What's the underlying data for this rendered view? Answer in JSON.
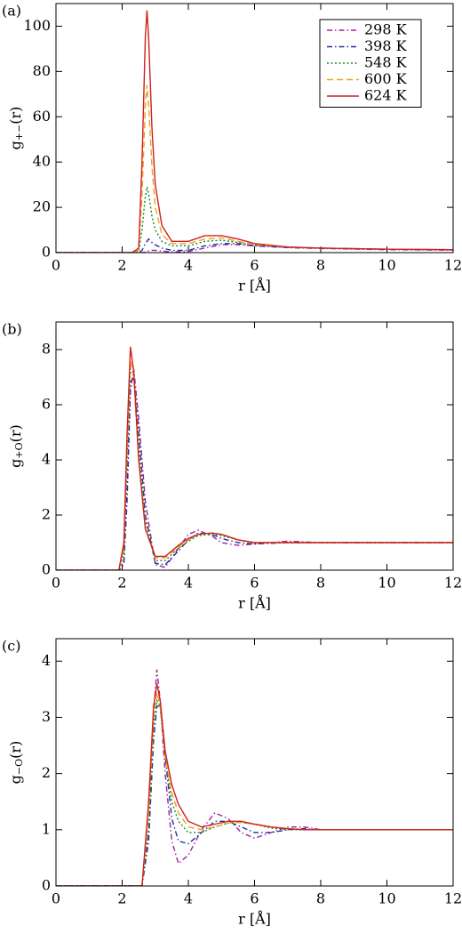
{
  "chart_data": [
    {
      "type": "line",
      "panel_label": "(a)",
      "xlabel": "r [Å]",
      "ylabel": "g",
      "ylabel_sub": "+−",
      "ylabel_tail": "(r)",
      "xlim": [
        0,
        12
      ],
      "xticks": [
        0,
        2,
        4,
        6,
        8,
        10,
        12
      ],
      "ylim": [
        0,
        110
      ],
      "yticks": [
        0,
        20,
        40,
        60,
        80,
        100
      ],
      "legend": "upper right",
      "x": [
        0,
        2.3,
        2.5,
        2.6,
        2.7,
        2.75,
        2.8,
        2.9,
        3.0,
        3.2,
        3.5,
        4.0,
        4.5,
        5.0,
        5.5,
        6.0,
        7.0,
        8.0,
        10,
        12
      ],
      "series": [
        {
          "name": "298 K",
          "color": "#a020a0",
          "dash": "dashdot",
          "values": [
            0,
            0,
            0,
            0,
            0.3,
            0.5,
            0.8,
            1,
            1,
            0.7,
            0.3,
            0.5,
            2,
            3.5,
            3.5,
            3,
            2.2,
            1.8,
            1.3,
            1.1
          ]
        },
        {
          "name": "398 K",
          "color": "#2030a0",
          "dash": "dashdot",
          "values": [
            0,
            0,
            0,
            1,
            4,
            5,
            6,
            4.5,
            3.5,
            2,
            1,
            1,
            3,
            4,
            4,
            3,
            2.3,
            2,
            1.5,
            1.2
          ]
        },
        {
          "name": "548 K",
          "color": "#1a8a1a",
          "dash": "dot",
          "values": [
            0,
            0,
            0.5,
            10,
            25,
            29,
            26,
            16,
            10,
            5,
            3,
            3,
            5,
            5.5,
            4.5,
            3.5,
            2.5,
            2,
            1.5,
            1.3
          ]
        },
        {
          "name": "600 K",
          "color": "#f0a020",
          "dash": "dash",
          "values": [
            0,
            0,
            1,
            25,
            65,
            74,
            65,
            38,
            20,
            8,
            4,
            4,
            6,
            6.5,
            5,
            3.5,
            2.5,
            2,
            1.5,
            1.3
          ]
        },
        {
          "name": "624 K",
          "color": "#d02020",
          "dash": "solid",
          "values": [
            0,
            0,
            2,
            40,
            95,
            107,
            95,
            55,
            30,
            12,
            5,
            5,
            7.5,
            7.5,
            6,
            4,
            2.5,
            2,
            1.5,
            1.3
          ]
        }
      ]
    },
    {
      "type": "line",
      "panel_label": "(b)",
      "xlabel": "r [Å]",
      "ylabel": "g",
      "ylabel_sub": "+O",
      "ylabel_tail": "(r)",
      "xlim": [
        0,
        12
      ],
      "xticks": [
        0,
        2,
        4,
        6,
        8,
        10,
        12
      ],
      "ylim": [
        0,
        9
      ],
      "yticks": [
        0,
        2,
        4,
        6,
        8
      ],
      "x": [
        0,
        1.9,
        2.05,
        2.15,
        2.25,
        2.35,
        2.5,
        2.7,
        3.0,
        3.3,
        3.7,
        4.0,
        4.3,
        4.7,
        5.0,
        5.5,
        6.0,
        7.0,
        8.0,
        10,
        12
      ],
      "series": [
        {
          "color": "#a020a0",
          "dash": "dashdot",
          "values": [
            0,
            0,
            0.2,
            2.5,
            6.5,
            7.3,
            5.5,
            2.5,
            0.2,
            0.1,
            0.8,
            1.3,
            1.45,
            1.25,
            1.0,
            0.9,
            0.95,
            1.05,
            1.0,
            1.0,
            1.0
          ]
        },
        {
          "color": "#2030a0",
          "dash": "dashdot",
          "values": [
            0,
            0,
            0.3,
            3,
            6.8,
            7.0,
            5,
            2,
            0.25,
            0.2,
            0.7,
            1.1,
            1.35,
            1.3,
            1.15,
            1.0,
            0.95,
            1.0,
            1.0,
            1.0,
            1.0
          ]
        },
        {
          "color": "#1a8a1a",
          "dash": "dot",
          "values": [
            0,
            0,
            0.6,
            4,
            7.3,
            7.1,
            4.5,
            1.8,
            0.35,
            0.35,
            0.8,
            1.05,
            1.25,
            1.3,
            1.25,
            1.1,
            1.0,
            1.0,
            1.0,
            1.0,
            1.0
          ]
        },
        {
          "color": "#f0a020",
          "dash": "dash",
          "values": [
            0,
            0,
            0.8,
            4.5,
            7.6,
            7.0,
            4,
            1.5,
            0.45,
            0.45,
            0.85,
            1.1,
            1.3,
            1.35,
            1.3,
            1.1,
            1.0,
            1.0,
            1.0,
            1.0,
            1.0
          ]
        },
        {
          "color": "#d02020",
          "dash": "solid",
          "values": [
            0,
            0,
            1,
            5,
            8.1,
            7.2,
            4,
            1.5,
            0.5,
            0.5,
            0.9,
            1.15,
            1.3,
            1.35,
            1.3,
            1.1,
            1.0,
            1.0,
            1.0,
            1.0,
            1.0
          ]
        }
      ]
    },
    {
      "type": "line",
      "panel_label": "(c)",
      "xlabel": "r [Å]",
      "ylabel": "g",
      "ylabel_sub": "−O",
      "ylabel_tail": "(r)",
      "xlim": [
        0,
        12
      ],
      "xticks": [
        0,
        2,
        4,
        6,
        8,
        10,
        12
      ],
      "ylim": [
        0,
        4.4
      ],
      "yticks": [
        0,
        1,
        2,
        3,
        4
      ],
      "x": [
        0,
        2.6,
        2.8,
        2.95,
        3.05,
        3.15,
        3.3,
        3.5,
        3.7,
        4.0,
        4.4,
        4.8,
        5.2,
        5.6,
        6.0,
        6.5,
        7.0,
        7.5,
        8.0,
        9.0,
        10,
        12
      ],
      "series": [
        {
          "color": "#a020a0",
          "dash": "dashdot",
          "values": [
            0,
            0,
            1.0,
            3.1,
            3.85,
            3.3,
            2.0,
            0.8,
            0.4,
            0.55,
            1.0,
            1.3,
            1.2,
            0.95,
            0.85,
            0.95,
            1.05,
            1.05,
            1.0,
            1.0,
            1.0,
            1.0
          ]
        },
        {
          "color": "#2030a0",
          "dash": "dashdot",
          "values": [
            0,
            0,
            0.8,
            2.6,
            3.2,
            3.2,
            2.3,
            1.2,
            0.8,
            0.75,
            0.95,
            1.15,
            1.15,
            1.05,
            0.95,
            0.95,
            1.0,
            1.02,
            1.0,
            1.0,
            1.0,
            1.0
          ]
        },
        {
          "color": "#1a8a1a",
          "dash": "dot",
          "values": [
            0,
            0,
            1.0,
            2.8,
            3.3,
            3.2,
            2.3,
            1.5,
            1.15,
            0.95,
            0.95,
            1.05,
            1.12,
            1.13,
            1.1,
            1.03,
            1.0,
            1.0,
            1.0,
            1.0,
            1.0,
            1.0
          ]
        },
        {
          "color": "#f0a020",
          "dash": "dash",
          "values": [
            0,
            0,
            1.3,
            3.0,
            3.45,
            3.2,
            2.3,
            1.65,
            1.3,
            1.05,
            1.0,
            1.05,
            1.12,
            1.13,
            1.1,
            1.05,
            1.02,
            1.0,
            1.0,
            1.0,
            1.0,
            1.0
          ]
        },
        {
          "color": "#d02020",
          "dash": "solid",
          "values": [
            0,
            0,
            1.5,
            3.2,
            3.6,
            3.3,
            2.4,
            1.8,
            1.45,
            1.15,
            1.05,
            1.1,
            1.15,
            1.15,
            1.1,
            1.05,
            1.02,
            1.0,
            1.0,
            1.0,
            1.0,
            1.0
          ]
        }
      ]
    }
  ]
}
